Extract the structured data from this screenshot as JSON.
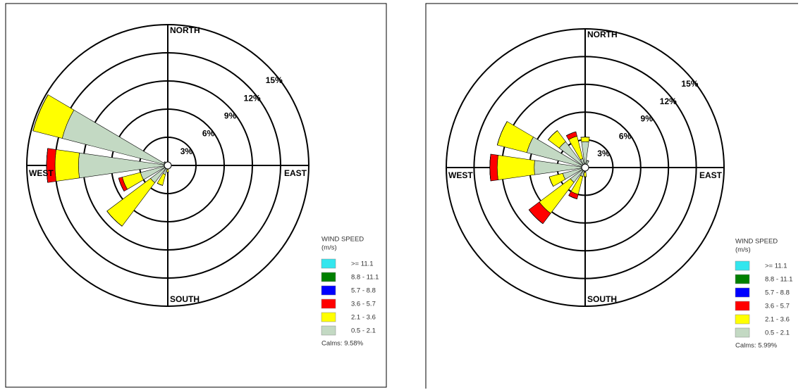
{
  "chart_data": [
    {
      "type": "windrose",
      "categories": [
        "NORTH",
        null,
        null,
        null,
        "EAST",
        null,
        null,
        null,
        "SOUTH",
        null,
        null,
        null,
        "WEST",
        null,
        null,
        null
      ],
      "rlim": [
        0,
        15
      ],
      "rticks": [
        {
          "value": 3,
          "label": "3%"
        },
        {
          "value": 6,
          "label": "6%"
        },
        {
          "value": 9,
          "label": "9%"
        },
        {
          "value": 12,
          "label": "12%"
        },
        {
          "value": 15,
          "label": "15%"
        }
      ],
      "legend_title": "WIND SPEED",
      "legend_unit": "(m/s)",
      "calms": "Calms: 9.58%",
      "series": [
        {
          "name": ">= 11.1",
          "color": "#33e6ee",
          "values": [
            0,
            0,
            0,
            0,
            0,
            0,
            0,
            0,
            0,
            0,
            0,
            0,
            0,
            0,
            0,
            0
          ]
        },
        {
          "name": "8.8 - 11.1",
          "color": "#008000",
          "values": [
            0,
            0,
            0,
            0,
            0,
            0,
            0,
            0,
            0,
            0,
            0,
            0,
            0,
            0,
            0,
            0
          ]
        },
        {
          "name": "5.7 - 8.8",
          "color": "#0000ff",
          "values": [
            0,
            0,
            0,
            0,
            0,
            0,
            0,
            0,
            0,
            0,
            0,
            0,
            0,
            0,
            0,
            0
          ]
        },
        {
          "name": "3.6 - 5.7",
          "color": "#ff0000",
          "values": [
            0,
            0,
            0,
            0,
            0,
            0,
            0,
            0,
            0,
            0,
            0,
            0.4,
            0.9,
            0,
            0,
            0
          ]
        },
        {
          "name": "2.1 - 3.6",
          "color": "#ffff00",
          "values": [
            0,
            0,
            0,
            0,
            0,
            0,
            0,
            0,
            0.3,
            1.2,
            5.8,
            2.0,
            2.5,
            3.2,
            0,
            0
          ]
        },
        {
          "name": "0.5 - 2.1",
          "color": "#c3d9c3",
          "values": [
            0.3,
            0.2,
            0.1,
            0.1,
            0.1,
            0.1,
            0.1,
            0.2,
            0.4,
            1.0,
            2.3,
            3.0,
            9.5,
            11.6,
            0.5,
            0.3
          ]
        }
      ]
    },
    {
      "type": "windrose",
      "categories": [
        "NORTH",
        null,
        null,
        null,
        "EAST",
        null,
        null,
        null,
        "SOUTH",
        null,
        null,
        null,
        "WEST",
        null,
        null,
        null
      ],
      "rlim": [
        0,
        15
      ],
      "rticks": [
        {
          "value": 3,
          "label": "3%"
        },
        {
          "value": 6,
          "label": "6%"
        },
        {
          "value": 9,
          "label": "9%"
        },
        {
          "value": 12,
          "label": "12%"
        },
        {
          "value": 15,
          "label": "15%"
        }
      ],
      "legend_title": "WIND SPEED",
      "legend_unit": "(m/s)",
      "calms": "Calms: 5.99%",
      "series": [
        {
          "name": ">= 11.1",
          "color": "#33e6ee",
          "values": [
            0,
            0,
            0,
            0,
            0,
            0,
            0,
            0,
            0,
            0,
            0,
            0,
            0,
            0,
            0,
            0
          ]
        },
        {
          "name": "8.8 - 11.1",
          "color": "#008000",
          "values": [
            0,
            0,
            0,
            0,
            0,
            0,
            0,
            0,
            0,
            0,
            0,
            0,
            0,
            0,
            0,
            0
          ]
        },
        {
          "name": "5.7 - 8.8",
          "color": "#0000ff",
          "values": [
            0,
            0,
            0,
            0,
            0,
            0,
            0,
            0,
            0,
            0,
            0,
            0,
            0,
            0,
            0,
            0
          ]
        },
        {
          "name": "3.6 - 5.7",
          "color": "#ff0000",
          "values": [
            0,
            0,
            0,
            0,
            0,
            0,
            0,
            0,
            0,
            0.5,
            1.4,
            0,
            0.8,
            0,
            0,
            0.5
          ]
        },
        {
          "name": "2.1 - 3.6",
          "color": "#ffff00",
          "values": [
            0.5,
            0,
            0,
            0,
            0,
            0,
            0,
            0,
            0.5,
            2.0,
            4.2,
            1.5,
            4.0,
            3.3,
            1.5,
            2.5
          ]
        },
        {
          "name": "0.5 - 2.1",
          "color": "#c3d9c3",
          "values": [
            2.8,
            0.8,
            0.2,
            0.1,
            0.1,
            0.1,
            0.2,
            0.3,
            0.5,
            1.0,
            2.0,
            2.5,
            5.5,
            6.5,
            3.5,
            1.0
          ]
        }
      ]
    }
  ]
}
